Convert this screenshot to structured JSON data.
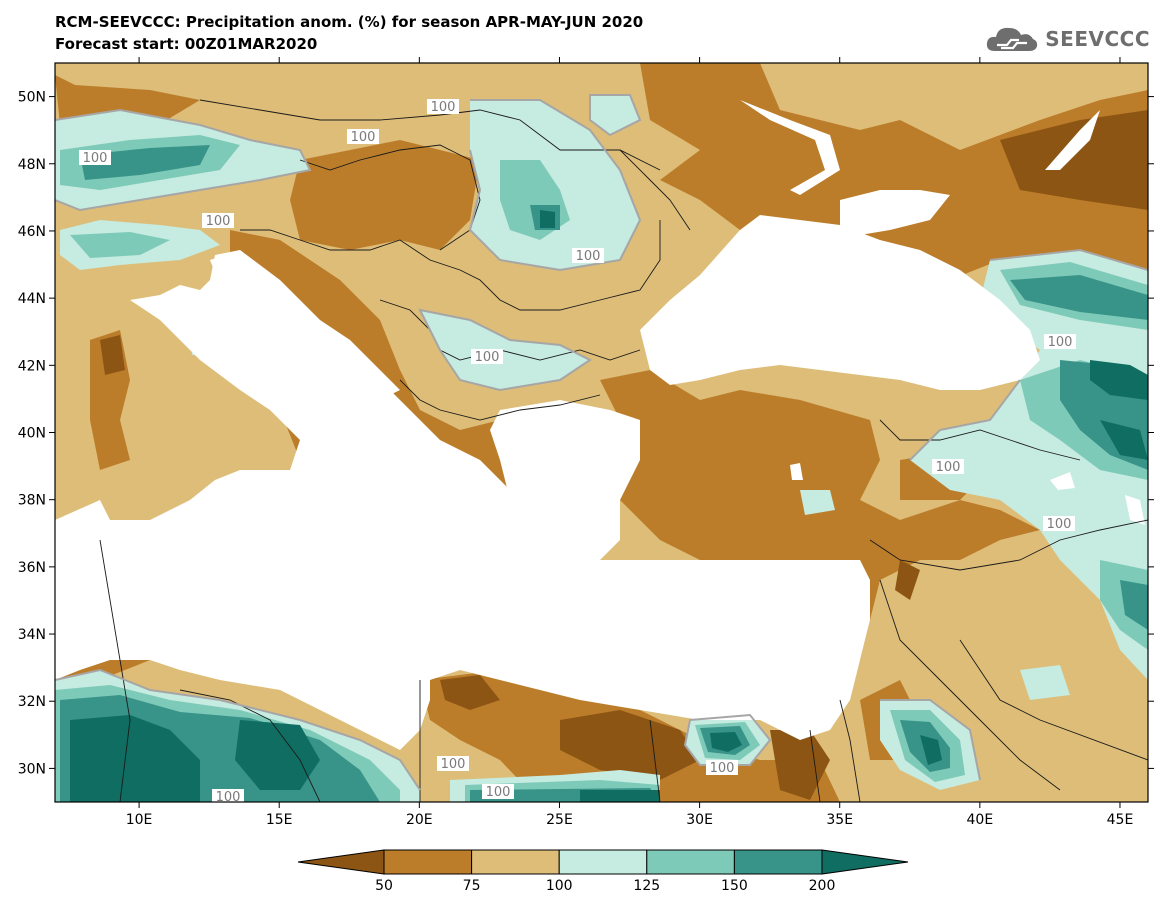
{
  "header": {
    "title_line1": "RCM-SEEVCCC: Precipitation anom. (%) for season APR-MAY-JUN 2020",
    "title_line2": "Forecast start: 00Z01MAR2020",
    "logo_text": "SEEVCCC"
  },
  "map": {
    "lon_range": [
      7,
      46
    ],
    "lat_range": [
      29,
      51
    ],
    "lon_ticks": [
      "10E",
      "15E",
      "20E",
      "25E",
      "30E",
      "35E",
      "40E",
      "45E"
    ],
    "lat_ticks": [
      "50N",
      "48N",
      "46N",
      "44N",
      "42N",
      "40N",
      "38N",
      "36N",
      "34N",
      "32N",
      "30N"
    ],
    "contour_labels": [
      "100",
      "100",
      "100",
      "100",
      "100",
      "100",
      "100",
      "100",
      "100",
      "100",
      "100",
      "100",
      "100"
    ]
  },
  "legend": {
    "boundaries": [
      "50",
      "75",
      "100",
      "125",
      "150",
      "200"
    ],
    "colors": [
      "#8c5514",
      "#bc7d2a",
      "#ddbd78",
      "#c6ebe0",
      "#7ecab8",
      "#389389",
      "#0f6d62"
    ]
  },
  "colors": {
    "very_dry": "#8c5514",
    "dry": "#bc7d2a",
    "slightly_dry": "#ddbd78",
    "slightly_wet": "#c6ebe0",
    "wet": "#7ecab8",
    "very_wet": "#389389",
    "extreme_wet": "#0f6d62",
    "contour_line": "#a6a6a6"
  }
}
